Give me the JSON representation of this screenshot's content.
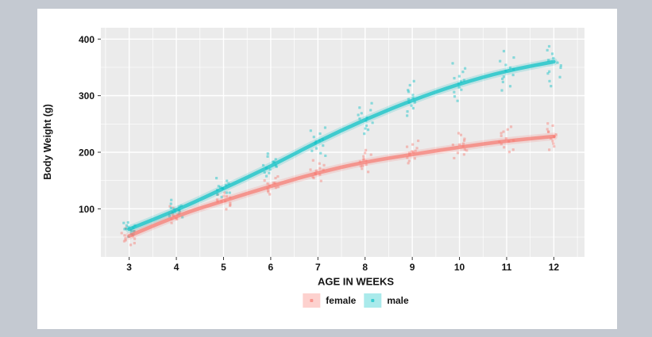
{
  "window": {
    "outer_background": "#c4c9d1",
    "figure_background": "#ffffff"
  },
  "chart_data": {
    "type": "scatter",
    "title": "",
    "xlabel": "AGE IN WEEKS",
    "ylabel": "Body Weight (g)",
    "weeks": [
      3,
      4,
      5,
      6,
      7,
      8,
      9,
      10,
      11,
      12
    ],
    "x_ticks": [
      3,
      4,
      5,
      6,
      7,
      8,
      9,
      10,
      11,
      12
    ],
    "y_ticks": [
      100,
      200,
      300,
      400
    ],
    "x_minor_ticks": [
      2.5,
      3.5,
      4.5,
      5.5,
      6.5,
      7.5,
      8.5,
      9.5,
      10.5,
      11.5,
      12.5
    ],
    "y_minor_ticks": [
      50,
      150,
      250,
      350
    ],
    "xlim": [
      2.4,
      12.65
    ],
    "ylim": [
      15,
      420
    ],
    "grid": {
      "panel_color": "#ebebeb",
      "major_color": "#ffffff",
      "minor_color": "#ffffff",
      "grid_on": true
    },
    "legend": {
      "position": "bottom",
      "entries": [
        {
          "label": "female",
          "color": "#F8766D"
        },
        {
          "label": "male",
          "color": "#00BFC4"
        }
      ]
    },
    "series": [
      {
        "name": "female",
        "color": "#F8766D",
        "smooth": [
          52,
          88,
          114,
          140,
          164,
          183,
          196,
          209,
          220,
          228
        ],
        "points": [
          [
            36,
            40,
            43,
            45,
            47,
            49,
            51,
            53,
            55,
            57,
            59,
            61,
            64
          ],
          [
            76,
            80,
            83,
            85,
            87,
            89,
            90,
            91,
            93,
            95,
            98,
            101,
            105
          ],
          [
            100,
            104,
            107,
            109,
            111,
            113,
            115,
            117,
            119,
            121,
            124,
            127,
            130
          ],
          [
            126,
            130,
            133,
            136,
            138,
            140,
            141,
            143,
            145,
            147,
            150,
            153,
            156
          ],
          [
            150,
            154,
            157,
            160,
            162,
            164,
            166,
            168,
            170,
            173,
            176,
            180,
            184
          ],
          [
            166,
            170,
            174,
            177,
            180,
            182,
            184,
            186,
            189,
            192,
            195,
            199,
            204
          ],
          [
            180,
            184,
            188,
            191,
            194,
            197,
            199,
            201,
            204,
            207,
            211,
            215,
            220
          ],
          [
            190,
            195,
            199,
            203,
            206,
            209,
            212,
            214,
            217,
            221,
            225,
            230,
            235
          ],
          [
            200,
            205,
            210,
            214,
            217,
            220,
            222,
            225,
            228,
            232,
            236,
            241,
            246
          ],
          [
            205,
            210,
            215,
            219,
            223,
            226,
            228,
            231,
            234,
            238,
            242,
            247,
            252
          ]
        ]
      },
      {
        "name": "male",
        "color": "#00BFC4",
        "smooth": [
          64,
          97,
          136,
          175,
          219,
          258,
          292,
          321,
          344,
          360
        ],
        "points": [
          [
            50,
            54,
            57,
            59,
            61,
            63,
            64,
            66,
            68,
            70,
            72,
            74,
            77
          ],
          [
            84,
            88,
            91,
            93,
            95,
            97,
            98,
            100,
            102,
            104,
            107,
            110,
            114
          ],
          [
            120,
            124,
            127,
            130,
            132,
            134,
            136,
            138,
            140,
            143,
            146,
            150,
            154
          ],
          [
            158,
            162,
            166,
            169,
            172,
            174,
            176,
            178,
            181,
            184,
            187,
            191,
            196
          ],
          [
            194,
            199,
            204,
            208,
            212,
            215,
            218,
            221,
            224,
            228,
            232,
            237,
            243
          ],
          [
            232,
            238,
            243,
            248,
            252,
            255,
            258,
            261,
            265,
            269,
            274,
            280,
            287
          ],
          [
            265,
            272,
            278,
            283,
            287,
            290,
            293,
            297,
            301,
            306,
            311,
            317,
            324
          ],
          [
            292,
            299,
            306,
            312,
            316,
            320,
            323,
            327,
            331,
            336,
            342,
            349,
            356
          ],
          [
            308,
            316,
            323,
            329,
            334,
            338,
            342,
            346,
            351,
            356,
            362,
            369,
            377
          ],
          [
            318,
            326,
            333,
            339,
            344,
            348,
            352,
            357,
            362,
            367,
            373,
            380,
            388
          ]
        ]
      }
    ]
  }
}
